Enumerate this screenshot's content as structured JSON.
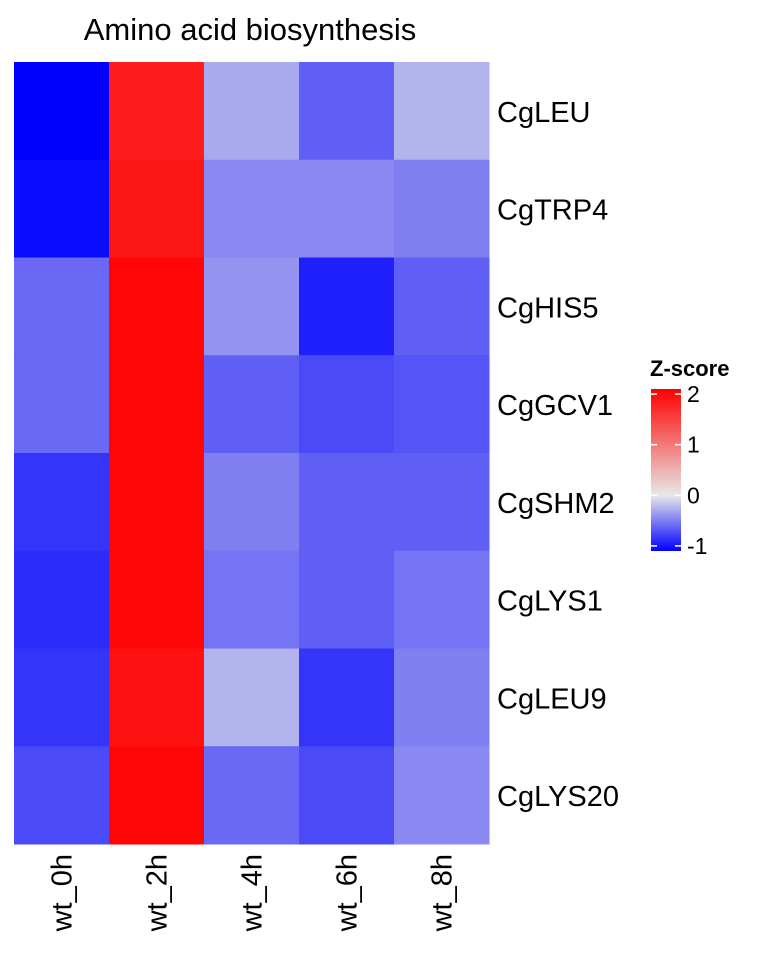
{
  "chart_data": {
    "type": "heatmap",
    "title": "Amino acid biosynthesis",
    "xlabel": "",
    "ylabel": "",
    "columns": [
      "wt_0h",
      "wt_2h",
      "wt_4h",
      "wt_6h",
      "wt_8h"
    ],
    "rows": [
      "CgLEU",
      "CgTRP4",
      "CgHIS5",
      "CgGCV1",
      "CgSHM2",
      "CgLYS1",
      "CgLEU9",
      "CgLYS20"
    ],
    "values": [
      [
        -1.1,
        1.85,
        -0.3,
        -0.65,
        -0.25
      ],
      [
        -1.05,
        1.9,
        -0.45,
        -0.45,
        -0.5
      ],
      [
        -0.6,
        2.05,
        -0.4,
        -0.95,
        -0.65
      ],
      [
        -0.6,
        2.05,
        -0.65,
        -0.75,
        -0.7
      ],
      [
        -0.85,
        2.05,
        -0.5,
        -0.65,
        -0.65
      ],
      [
        -0.9,
        2.05,
        -0.55,
        -0.65,
        -0.55
      ],
      [
        -0.85,
        1.95,
        -0.25,
        -0.85,
        -0.5
      ],
      [
        -0.75,
        2.05,
        -0.6,
        -0.75,
        -0.45
      ]
    ],
    "legend": {
      "title": "Z-score",
      "placement": "right",
      "ticks": [
        "2",
        "1",
        "0",
        "-1"
      ],
      "tick_values": [
        2,
        1,
        0,
        -1
      ],
      "min": -1.1,
      "max": 2.1,
      "colors": {
        "low": "#0000FF",
        "mid": "#E8E8E8",
        "high": "#FF0000"
      }
    }
  }
}
